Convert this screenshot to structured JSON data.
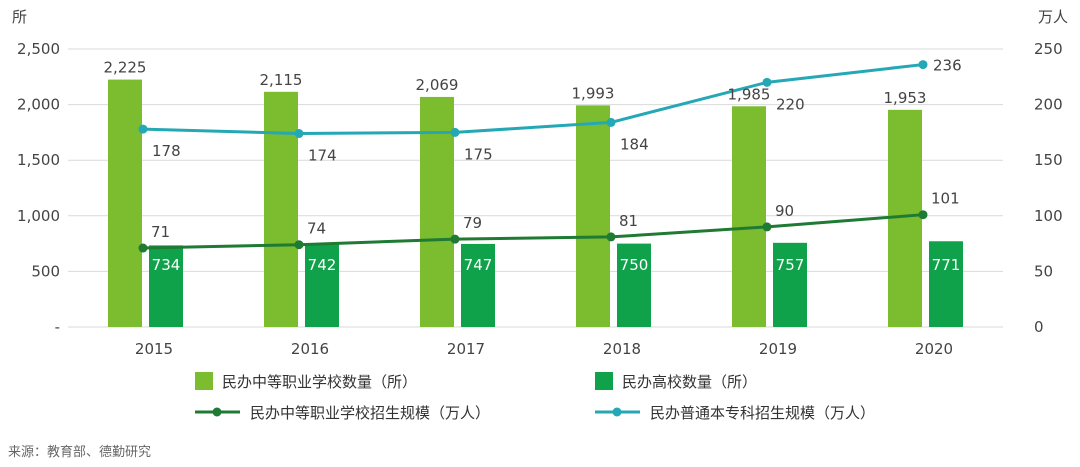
{
  "chart_data": {
    "type": "bar",
    "categories": [
      "2015",
      "2016",
      "2017",
      "2018",
      "2019",
      "2020"
    ],
    "left_axis": {
      "unit": "所",
      "ylim": [
        0,
        2500
      ],
      "ticks": [
        {
          "value": 0,
          "label": "-"
        },
        {
          "value": 500,
          "label": "500"
        },
        {
          "value": 1000,
          "label": "1,000"
        },
        {
          "value": 1500,
          "label": "1,500"
        },
        {
          "value": 2000,
          "label": "2,000"
        },
        {
          "value": 2500,
          "label": "2,500"
        }
      ]
    },
    "right_axis": {
      "unit": "万人",
      "ylim": [
        0,
        250
      ],
      "ticks": [
        {
          "value": 0,
          "label": "0"
        },
        {
          "value": 50,
          "label": "50"
        },
        {
          "value": 100,
          "label": "100"
        },
        {
          "value": 150,
          "label": "150"
        },
        {
          "value": 200,
          "label": "200"
        },
        {
          "value": 250,
          "label": "250"
        }
      ]
    },
    "grid": true,
    "legend_position": "bottom",
    "series": [
      {
        "name": "民办中等职业学校数量（所）",
        "type": "bar",
        "axis": "left",
        "color": "#7cbc2f",
        "values": [
          2225,
          2115,
          2069,
          1993,
          1985,
          1953
        ],
        "labels": [
          "2,225",
          "2,115",
          "2,069",
          "1,993",
          "1,985",
          "1,953"
        ]
      },
      {
        "name": "民办高校数量（所）",
        "type": "bar",
        "axis": "left",
        "color": "#10a24b",
        "values": [
          734,
          742,
          747,
          750,
          757,
          771
        ],
        "labels": [
          "734",
          "742",
          "747",
          "750",
          "757",
          "771"
        ]
      },
      {
        "name": "民办中等职业学校招生规模（万人）",
        "type": "line",
        "axis": "right",
        "color": "#1f7a33",
        "values": [
          71,
          74,
          79,
          81,
          90,
          101
        ],
        "labels": [
          "71",
          "74",
          "79",
          "81",
          "90",
          "101"
        ]
      },
      {
        "name": "民办普通本专科招生规模（万人）",
        "type": "line",
        "axis": "right",
        "color": "#24a8b5",
        "values": [
          178,
          174,
          175,
          184,
          220,
          236
        ],
        "labels": [
          "178",
          "174",
          "175",
          "184",
          "220",
          "236"
        ]
      }
    ],
    "source": "来源：教育部、德勤研究"
  }
}
